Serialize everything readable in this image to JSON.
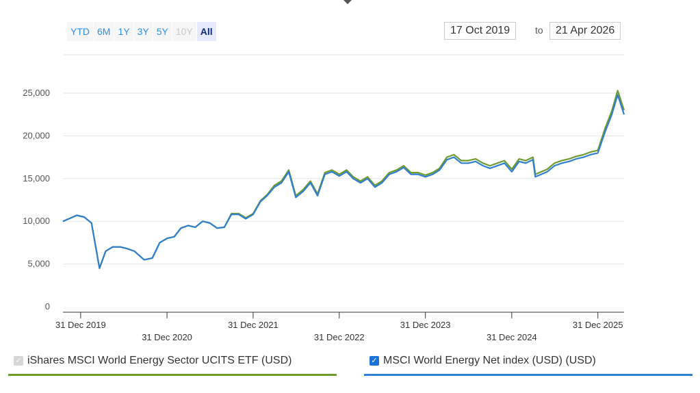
{
  "range_buttons": [
    {
      "label": "YTD",
      "state": "enabled"
    },
    {
      "label": "6M",
      "state": "enabled"
    },
    {
      "label": "1Y",
      "state": "enabled"
    },
    {
      "label": "3Y",
      "state": "enabled"
    },
    {
      "label": "5Y",
      "state": "enabled"
    },
    {
      "label": "10Y",
      "state": "disabled"
    },
    {
      "label": "All",
      "state": "active"
    }
  ],
  "date_from": "17 Oct 2019",
  "to_label": "to",
  "date_to": "21 Apr 2026",
  "legend": [
    {
      "label": "iShares MSCI World Energy Sector UCITS ETF (USD)",
      "checked": true,
      "checkbox_disabled": true,
      "color": "#6e9a2e"
    },
    {
      "label": "MSCI World Energy Net index (USD) (USD)",
      "checked": true,
      "checkbox_disabled": false,
      "color": "#2f7fd0"
    }
  ],
  "chart_data": {
    "type": "line",
    "ylim": [
      0,
      27500
    ],
    "xlim": [
      "2019-10-17",
      "2026-04-21"
    ],
    "grid": "horizontal",
    "yticks": [
      0,
      5000,
      10000,
      15000,
      20000,
      25000
    ],
    "ytick_labels": [
      "0",
      "5,000",
      "10,000",
      "15,000",
      "20,000",
      "25,000"
    ],
    "xticks": [
      "2019-12-31",
      "2020-12-31",
      "2021-12-31",
      "2022-12-31",
      "2023-12-31",
      "2024-12-31",
      "2025-12-31"
    ],
    "xtick_labels": [
      "31 Dec 2019",
      "31 Dec 2020",
      "31 Dec 2021",
      "31 Dec 2022",
      "31 Dec 2023",
      "31 Dec 2024",
      "31 Dec 2025"
    ],
    "x": [
      "2019-10-17",
      "2019-12-15",
      "2020-01-15",
      "2020-02-15",
      "2020-03-20",
      "2020-04-15",
      "2020-05-15",
      "2020-06-15",
      "2020-07-15",
      "2020-08-15",
      "2020-09-25",
      "2020-10-30",
      "2020-11-30",
      "2020-12-31",
      "2021-01-31",
      "2021-02-28",
      "2021-03-31",
      "2021-04-30",
      "2021-05-31",
      "2021-06-30",
      "2021-07-31",
      "2021-08-31",
      "2021-09-30",
      "2021-10-31",
      "2021-11-30",
      "2021-12-31",
      "2022-01-31",
      "2022-02-28",
      "2022-03-31",
      "2022-04-30",
      "2022-05-31",
      "2022-06-30",
      "2022-07-31",
      "2022-08-31",
      "2022-09-30",
      "2022-10-31",
      "2022-11-30",
      "2022-12-31",
      "2023-01-31",
      "2023-02-28",
      "2023-03-31",
      "2023-04-30",
      "2023-05-31",
      "2023-06-30",
      "2023-07-31",
      "2023-08-31",
      "2023-09-30",
      "2023-10-31",
      "2023-11-30",
      "2023-12-31",
      "2024-01-31",
      "2024-02-29",
      "2024-03-31",
      "2024-04-30",
      "2024-05-31",
      "2024-06-30",
      "2024-07-31",
      "2024-08-31",
      "2024-09-30",
      "2024-10-31",
      "2024-11-30",
      "2024-12-31",
      "2025-01-31",
      "2025-02-28",
      "2025-03-31",
      "2025-04-10",
      "2025-05-31",
      "2025-06-30",
      "2025-07-31",
      "2025-08-31",
      "2025-09-30",
      "2025-10-31",
      "2025-11-30",
      "2025-12-31",
      "2026-01-31",
      "2026-02-28",
      "2026-03-25",
      "2026-04-21"
    ],
    "series": [
      {
        "name": "iShares MSCI World Energy Sector UCITS ETF (USD)",
        "color": "#6e9a2e",
        "values": [
          10000,
          10700,
          10500,
          9800,
          4500,
          6500,
          7000,
          7000,
          6800,
          6500,
          5500,
          5700,
          7500,
          8000,
          8200,
          9200,
          9500,
          9300,
          10000,
          9800,
          9200,
          9300,
          10900,
          10900,
          10400,
          10900,
          12400,
          13100,
          14200,
          14700,
          16000,
          13000,
          13700,
          14700,
          13200,
          15700,
          16000,
          15500,
          16000,
          15200,
          14700,
          15200,
          14200,
          14700,
          15700,
          16000,
          16500,
          15700,
          15700,
          15400,
          15700,
          16200,
          17500,
          17800,
          17100,
          17100,
          17300,
          16800,
          16500,
          16800,
          17100,
          16100,
          17300,
          17100,
          17500,
          15500,
          16100,
          16800,
          17100,
          17300,
          17600,
          17800,
          18100,
          18300,
          20900,
          22900,
          25300,
          23000
        ]
      },
      {
        "name": "MSCI World Energy Net index (USD) (USD)",
        "color": "#2f7fd0",
        "values": [
          10000,
          10700,
          10500,
          9800,
          4500,
          6500,
          7000,
          7000,
          6800,
          6500,
          5500,
          5700,
          7500,
          8000,
          8200,
          9200,
          9500,
          9300,
          10000,
          9800,
          9200,
          9300,
          10800,
          10800,
          10300,
          10800,
          12300,
          13000,
          14000,
          14500,
          15800,
          12800,
          13500,
          14500,
          13000,
          15500,
          15800,
          15300,
          15800,
          15000,
          14500,
          15000,
          14000,
          14500,
          15500,
          15800,
          16300,
          15500,
          15500,
          15200,
          15500,
          16000,
          17200,
          17500,
          16800,
          16800,
          17000,
          16500,
          16200,
          16500,
          16800,
          15800,
          17000,
          16800,
          17200,
          15200,
          15800,
          16500,
          16800,
          17000,
          17300,
          17500,
          17800,
          18000,
          20500,
          22500,
          24800,
          22500
        ]
      }
    ]
  }
}
